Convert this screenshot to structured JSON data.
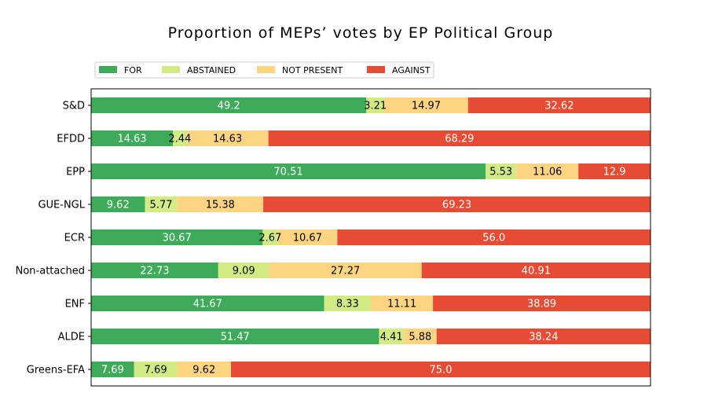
{
  "chart_data": {
    "type": "bar",
    "orientation": "horizontal",
    "stacked": true,
    "title": "Proportion of MEPs’ votes by EP Political Group",
    "xlabel": "",
    "ylabel": "",
    "xlim": [
      0,
      100
    ],
    "grid": false,
    "legend_position": "top-left",
    "categories": [
      "S&D",
      "EFDD",
      "EPP",
      "GUE-NGL",
      "ECR",
      "Non-attached",
      "ENF",
      "ALDE",
      "Greens-EFA"
    ],
    "series": [
      {
        "name": "FOR",
        "color": "#3fab5a",
        "label_color": "#ffffff",
        "values": [
          49.2,
          14.63,
          70.51,
          9.62,
          30.67,
          22.73,
          41.67,
          51.47,
          7.69
        ],
        "labels": [
          "49.2",
          "14.63",
          "70.51",
          "9.62",
          "30.67",
          "22.73",
          "41.67",
          "51.47",
          "7.69"
        ]
      },
      {
        "name": "ABSTAINED",
        "color": "#d3eb85",
        "label_color": "#000000",
        "values": [
          3.21,
          2.44,
          5.53,
          5.77,
          2.67,
          9.09,
          8.33,
          4.41,
          7.69
        ],
        "labels": [
          "3.21",
          "2.44",
          "5.53",
          "5.77",
          "2.67",
          "9.09",
          "8.33",
          "4.41",
          "7.69"
        ]
      },
      {
        "name": "NOT PRESENT",
        "color": "#fdd481",
        "label_color": "#000000",
        "values": [
          14.97,
          14.63,
          11.06,
          15.38,
          10.67,
          27.27,
          11.11,
          5.88,
          9.62
        ],
        "labels": [
          "14.97",
          "14.63",
          "11.06",
          "15.38",
          "10.67",
          "27.27",
          "11.11",
          "5.88",
          "9.62"
        ]
      },
      {
        "name": "AGAINST",
        "color": "#e64c35",
        "label_color": "#ffffff",
        "values": [
          32.62,
          68.29,
          12.9,
          69.23,
          56.0,
          40.91,
          38.89,
          38.24,
          75.0
        ],
        "labels": [
          "32.62",
          "68.29",
          "12.9",
          "69.23",
          "56.0",
          "40.91",
          "38.89",
          "38.24",
          "75.0"
        ]
      }
    ]
  }
}
